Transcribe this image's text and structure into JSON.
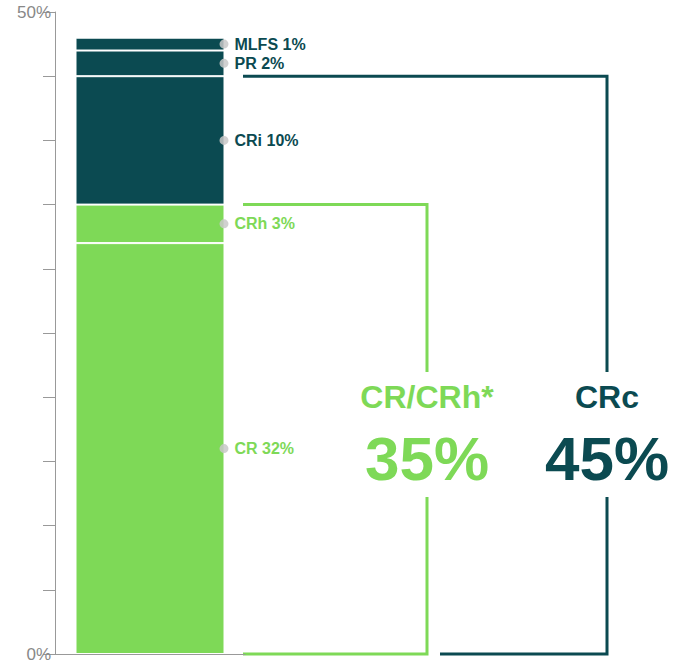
{
  "chart_data": {
    "type": "bar",
    "categories": [
      null
    ],
    "series": [
      {
        "name": "CR",
        "color": "#7ed957",
        "values": [
          32
        ],
        "value_labels": [
          "CR 32%"
        ]
      },
      {
        "name": "CRh",
        "color": "#7ed957",
        "values": [
          3
        ],
        "value_labels": [
          "CRh 3%"
        ]
      },
      {
        "name": "CRi",
        "color": "#0b4a51",
        "values": [
          10
        ],
        "value_labels": [
          "CRi 10%"
        ]
      },
      {
        "name": "PR",
        "color": "#0b4a51",
        "values": [
          2
        ],
        "value_labels": [
          "PR 2%"
        ]
      },
      {
        "name": "MLFS",
        "color": "#0b4a51",
        "values": [
          1
        ],
        "value_labels": [
          "MLFS 1%"
        ]
      }
    ],
    "stacked": true,
    "data_labels": true,
    "ylim": [
      0,
      50
    ],
    "yticks": [
      {
        "value": 0,
        "label": "0%"
      },
      {
        "value": 5,
        "label": null
      },
      {
        "value": 10,
        "label": null
      },
      {
        "value": 15,
        "label": null
      },
      {
        "value": 20,
        "label": null
      },
      {
        "value": 25,
        "label": null
      },
      {
        "value": 30,
        "label": null
      },
      {
        "value": 35,
        "label": null
      },
      {
        "value": 40,
        "label": null
      },
      {
        "value": 45,
        "label": null
      },
      {
        "value": 50,
        "label": "50%"
      }
    ],
    "grid": false,
    "tick_labels": "y",
    "annotations": [
      {
        "text": "CR/CRh*",
        "label": "35%",
        "range": [
          0,
          35
        ],
        "color": "#7ed957"
      },
      {
        "text": "CRc",
        "label": "45%",
        "range": [
          0,
          45
        ],
        "color": "#0b4a51"
      }
    ]
  }
}
